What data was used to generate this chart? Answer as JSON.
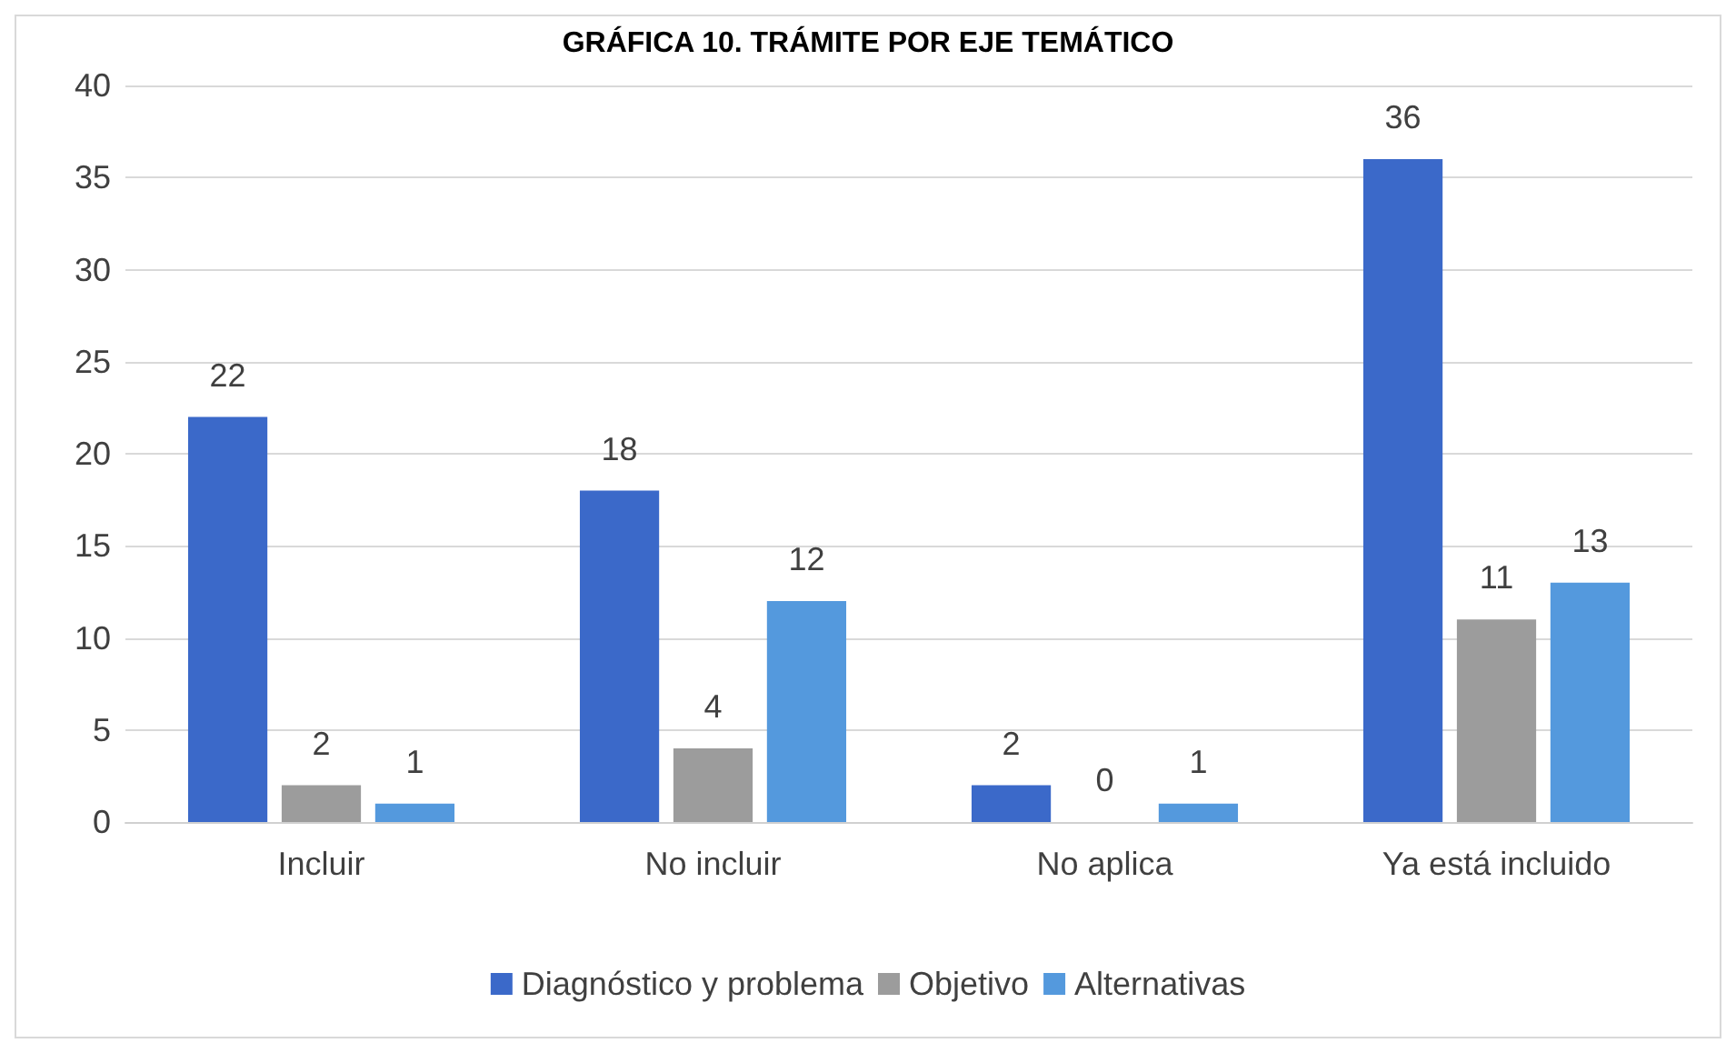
{
  "chart_data": {
    "type": "bar",
    "title": "GRÁFICA 10. TRÁMITE POR EJE TEMÁTICO",
    "categories": [
      "Incluir",
      "No incluir",
      "No aplica",
      "Ya está incluido"
    ],
    "series": [
      {
        "name": "Diagnóstico y problema",
        "color": "#3b69c9",
        "values": [
          22,
          18,
          2,
          36
        ]
      },
      {
        "name": "Objetivo",
        "color": "#9c9c9c",
        "values": [
          2,
          4,
          0,
          11
        ]
      },
      {
        "name": "Alternativas",
        "color": "#5499dd",
        "values": [
          1,
          12,
          1,
          13
        ]
      }
    ],
    "ylim": [
      0,
      40
    ],
    "yticks": [
      0,
      5,
      10,
      15,
      20,
      25,
      30,
      35,
      40
    ],
    "grid": "y",
    "legend": "bottom",
    "data_labels": true
  }
}
